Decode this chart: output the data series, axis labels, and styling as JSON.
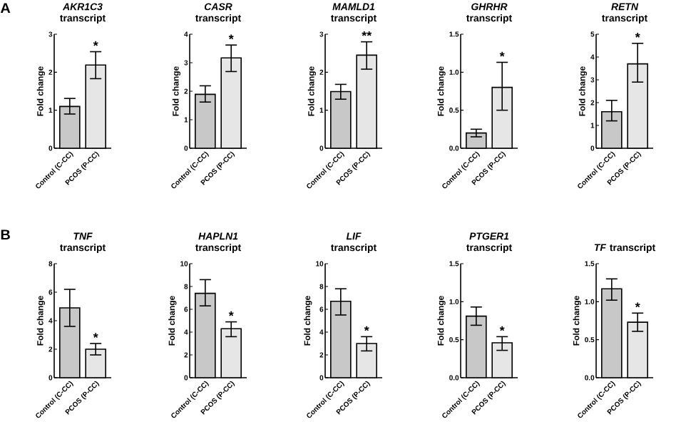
{
  "chart_data": [
    {
      "type": "bar",
      "title": "*AKR1C3* transcript",
      "ylabel": "Fold change",
      "categories": [
        "Control (C-CC)",
        "PCOS (P-CC)"
      ],
      "values": [
        1.1,
        2.19
      ],
      "errors": [
        [
          0.9,
          1.31
        ],
        [
          1.83,
          2.54
        ]
      ],
      "colors": [
        "#c8c8c8",
        "#e6e6e6"
      ],
      "ylim": [
        0,
        3
      ],
      "yticks": [
        0,
        1,
        2,
        3
      ],
      "annotations": [
        "A",
        {
          "text": "*",
          "x": "PCOS (P-CC)",
          "y": 2.54
        }
      ]
    },
    {
      "type": "bar",
      "title": "*CASR* transcript",
      "ylabel": "Fold change",
      "categories": [
        "Control (C-CC)",
        "PCOS (P-CC)"
      ],
      "values": [
        1.89,
        3.17
      ],
      "errors": [
        [
          1.62,
          2.19
        ],
        [
          2.69,
          3.62
        ]
      ],
      "colors": [
        "#c8c8c8",
        "#e6e6e6"
      ],
      "ylim": [
        0,
        4
      ],
      "yticks": [
        0,
        1,
        2,
        3,
        4
      ],
      "annotations": [
        {
          "text": "*",
          "x": "PCOS (P-CC)",
          "y": 3.62
        }
      ]
    },
    {
      "type": "bar",
      "title": "*MAMLD1* transcript",
      "ylabel": "Fold change",
      "categories": [
        "Control (C-CC)",
        "PCOS (P-CC)"
      ],
      "values": [
        1.49,
        2.45
      ],
      "errors": [
        [
          1.29,
          1.68
        ],
        [
          2.08,
          2.8
        ]
      ],
      "colors": [
        "#c8c8c8",
        "#e6e6e6"
      ],
      "ylim": [
        0,
        3
      ],
      "yticks": [
        0,
        1,
        2,
        3
      ],
      "annotations": [
        {
          "text": "**",
          "x": "PCOS (P-CC)",
          "y": 2.8
        }
      ]
    },
    {
      "type": "bar",
      "title": "*GHRHR* transcript",
      "ylabel": "Fold change",
      "categories": [
        "Control (C-CC)",
        "PCOS (P-CC)"
      ],
      "values": [
        0.2,
        0.8
      ],
      "errors": [
        [
          0.15,
          0.25
        ],
        [
          0.5,
          1.13
        ]
      ],
      "colors": [
        "#c8c8c8",
        "#e6e6e6"
      ],
      "ylim": [
        0,
        1.5
      ],
      "yticks": [
        {
          "value": 0,
          "label": "0.0"
        },
        {
          "value": 0.5,
          "label": "0.5"
        },
        {
          "value": 1,
          "label": "1.0"
        },
        {
          "value": 1.5,
          "label": "1.5"
        }
      ],
      "annotations": [
        {
          "text": "*",
          "x": "PCOS (P-CC)",
          "y": 1.13
        }
      ]
    },
    {
      "type": "bar",
      "title": "*RETN* transcript",
      "ylabel": "Fold change",
      "categories": [
        "Control (C-CC)",
        "PCOS (P-CC)"
      ],
      "values": [
        1.6,
        3.7
      ],
      "errors": [
        [
          1.2,
          2.1
        ],
        [
          2.9,
          4.6
        ]
      ],
      "colors": [
        "#c8c8c8",
        "#e6e6e6"
      ],
      "ylim": [
        0,
        5
      ],
      "yticks": [
        0,
        1,
        2,
        3,
        4,
        5
      ],
      "annotations": [
        {
          "text": "*",
          "x": "PCOS (P-CC)",
          "y": 4.6
        }
      ]
    },
    {
      "type": "bar",
      "title": "*TNF* transcript",
      "ylabel": "Fold change",
      "categories": [
        "Control (C-CC)",
        "PCOS (P-CC)"
      ],
      "values": [
        4.9,
        2.0
      ],
      "errors": [
        [
          3.6,
          6.2
        ],
        [
          1.6,
          2.4
        ]
      ],
      "colors": [
        "#c8c8c8",
        "#e6e6e6"
      ],
      "ylim": [
        0,
        8
      ],
      "yticks": [
        0,
        2,
        4,
        6,
        8
      ],
      "annotations": [
        "B",
        {
          "text": "*",
          "x": "PCOS (P-CC)",
          "y": 2.4
        }
      ]
    },
    {
      "type": "bar",
      "title": "*HAPLN1* transcript",
      "ylabel": "Fold change",
      "categories": [
        "Control (C-CC)",
        "PCOS (P-CC)"
      ],
      "values": [
        7.4,
        4.3
      ],
      "errors": [
        [
          6.3,
          8.6
        ],
        [
          3.6,
          4.9
        ]
      ],
      "colors": [
        "#c8c8c8",
        "#e6e6e6"
      ],
      "ylim": [
        0,
        10
      ],
      "yticks": [
        0,
        2,
        4,
        6,
        8,
        10
      ],
      "annotations": [
        {
          "text": "*",
          "x": "PCOS (P-CC)",
          "y": 4.9
        }
      ]
    },
    {
      "type": "bar",
      "title": "*LIF* transcript",
      "ylabel": "Fold change",
      "categories": [
        "Control (C-CC)",
        "PCOS (P-CC)"
      ],
      "values": [
        6.7,
        3.0
      ],
      "errors": [
        [
          5.5,
          7.8
        ],
        [
          2.35,
          3.6
        ]
      ],
      "colors": [
        "#c8c8c8",
        "#e6e6e6"
      ],
      "ylim": [
        0,
        10
      ],
      "yticks": [
        0,
        2,
        4,
        6,
        8,
        10
      ],
      "annotations": [
        {
          "text": "*",
          "x": "PCOS (P-CC)",
          "y": 3.6
        }
      ]
    },
    {
      "type": "bar",
      "title": "*PTGER1* transcript",
      "ylabel": "Fold change",
      "categories": [
        "Control (C-CC)",
        "PCOS (P-CC)"
      ],
      "values": [
        0.81,
        0.46
      ],
      "errors": [
        [
          0.69,
          0.93
        ],
        [
          0.36,
          0.54
        ]
      ],
      "colors": [
        "#c8c8c8",
        "#e6e6e6"
      ],
      "ylim": [
        0,
        1.5
      ],
      "yticks": [
        {
          "value": 0,
          "label": "0.0"
        },
        {
          "value": 0.5,
          "label": "0.5"
        },
        {
          "value": 1,
          "label": "1.0"
        },
        {
          "value": 1.5,
          "label": "1.5"
        }
      ],
      "annotations": [
        {
          "text": "*",
          "x": "PCOS (P-CC)",
          "y": 0.54
        }
      ]
    },
    {
      "type": "bar",
      "title": "*TF* transcript",
      "ylabel": "Fold change",
      "categories": [
        "Control (C-CC)",
        "PCOS (P-CC)"
      ],
      "values": [
        1.17,
        0.73
      ],
      "errors": [
        [
          1.02,
          1.3
        ],
        [
          0.61,
          0.85
        ]
      ],
      "colors": [
        "#c8c8c8",
        "#e6e6e6"
      ],
      "ylim": [
        0,
        1.5
      ],
      "yticks": [
        {
          "value": 0,
          "label": "0.0"
        },
        {
          "value": 0.5,
          "label": "0.5"
        },
        {
          "value": 1,
          "label": "1.0"
        },
        {
          "value": 1.5,
          "label": "1.5"
        }
      ],
      "annotations": [
        {
          "text": "*",
          "x": "PCOS (P-CC)",
          "y": 0.85
        }
      ]
    }
  ]
}
